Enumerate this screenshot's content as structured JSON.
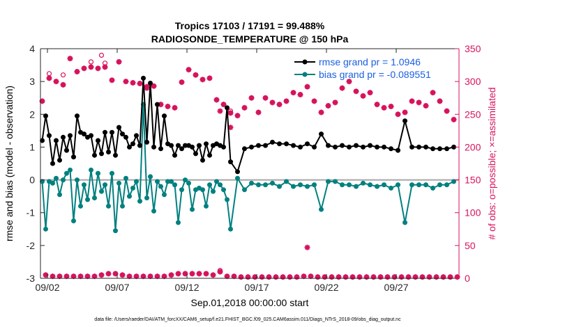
{
  "chart_data": {
    "type": "line",
    "title": "Tropics 17103 / 17191 = 99.488%",
    "subtitle": "RADIOSONDE_TEMPERATURE @ 150 hPa",
    "xlabel": "Sep.01,2018 00:00:00 start",
    "ylabel_left": "rmse and bias (model - observation)",
    "ylabel_right": "# of obs: o=possible; ×=assimilated",
    "footnote": "data file: /Users/raeder/DAI/ATM_forcXX/CAM6_setup/f.e21.FHIST_BGC.f09_025.CAM6assim.011/Diags_NTrS_2018-09/obs_diag_output.nc",
    "xlim": [
      1.5,
      31.5
    ],
    "ylim_left": [
      -3,
      4
    ],
    "ylim_right": [
      0,
      350
    ],
    "x_tick_values": [
      2,
      7,
      12,
      17,
      22,
      27
    ],
    "x_tick_labels": [
      "09/02",
      "09/07",
      "09/12",
      "09/17",
      "09/22",
      "09/27"
    ],
    "y_left_ticks": [
      -3,
      -2,
      -1,
      0,
      1,
      2,
      3,
      4
    ],
    "y_right_ticks": [
      0,
      50,
      100,
      150,
      200,
      250,
      300,
      350
    ],
    "grid": false,
    "legend_position": "top-right",
    "colors": {
      "rmse": "#000000",
      "bias": "#00807f",
      "obs": "#d6135d",
      "zero_line": "#a6a6a6",
      "legend_text": "#1a5fe0"
    },
    "series": [
      {
        "name": "rmse grand pr = 1.0946",
        "axis": "left",
        "x": [
          1.625,
          1.875,
          2.125,
          2.375,
          2.625,
          2.875,
          3.125,
          3.375,
          3.625,
          3.875,
          4.125,
          4.375,
          4.625,
          4.875,
          5.125,
          5.375,
          5.625,
          5.875,
          6.125,
          6.375,
          6.625,
          6.875,
          7.125,
          7.375,
          7.625,
          7.875,
          8.125,
          8.375,
          8.625,
          8.875,
          9.125,
          9.375,
          9.625,
          9.875,
          10.125,
          10.375,
          10.625,
          10.875,
          11.125,
          11.375,
          11.625,
          11.875,
          12.125,
          12.375,
          12.625,
          12.875,
          13.125,
          13.375,
          13.625,
          13.875,
          14.125,
          14.375,
          14.625,
          14.875,
          15.125,
          15.625,
          16.125,
          16.625,
          17.125,
          17.625,
          18.125,
          18.625,
          19.125,
          19.625,
          20.125,
          20.625,
          21.125,
          21.625,
          22.125,
          22.625,
          23.125,
          23.625,
          24.125,
          24.625,
          25.125,
          25.625,
          26.125,
          26.625,
          27.125,
          27.625,
          28.125,
          28.625,
          29.125,
          29.625,
          30.125,
          30.625,
          31.125
        ],
        "values": [
          1.2,
          1.95,
          1.35,
          0.5,
          1.2,
          0.6,
          1.3,
          0.9,
          1.35,
          0.7,
          1.95,
          1.45,
          1.4,
          1.3,
          1.35,
          0.75,
          1.2,
          0.8,
          1.45,
          0.85,
          1.45,
          0.75,
          1.6,
          1.4,
          1.3,
          1.0,
          1.1,
          1.35,
          1.05,
          3.1,
          1.15,
          2.95,
          1.0,
          2.3,
          0.95,
          1.95,
          1.1,
          1.05,
          0.75,
          1.05,
          0.95,
          1.05,
          1.05,
          1.0,
          0.8,
          1.05,
          0.6,
          1.1,
          0.75,
          1.05,
          1.1,
          1.05,
          1.0,
          2.2,
          0.55,
          0.25,
          0.95,
          1.0,
          1.05,
          1.05,
          1.15,
          1.1,
          1.1,
          1.05,
          1.0,
          1.1,
          1.0,
          1.4,
          1.05,
          1.0,
          1.05,
          1.0,
          1.05,
          1.0,
          1.05,
          1.0,
          1.0,
          0.95,
          0.9,
          1.8,
          1.0,
          1.0,
          1.0,
          0.95,
          0.95,
          0.95,
          1.0
        ]
      },
      {
        "name": "bias grand pr = -0.089551",
        "axis": "left",
        "x": [
          1.625,
          1.875,
          2.125,
          2.375,
          2.625,
          2.875,
          3.125,
          3.375,
          3.625,
          3.875,
          4.125,
          4.375,
          4.625,
          4.875,
          5.125,
          5.375,
          5.625,
          5.875,
          6.125,
          6.375,
          6.625,
          6.875,
          7.125,
          7.375,
          7.625,
          7.875,
          8.125,
          8.375,
          8.625,
          8.875,
          9.125,
          9.375,
          9.625,
          9.875,
          10.125,
          10.375,
          10.625,
          10.875,
          11.125,
          11.375,
          11.625,
          11.875,
          12.125,
          12.375,
          12.625,
          12.875,
          13.125,
          13.375,
          13.625,
          13.875,
          14.125,
          14.375,
          14.625,
          14.875,
          15.125,
          15.625,
          16.125,
          16.625,
          17.125,
          17.625,
          18.125,
          18.625,
          19.125,
          19.625,
          20.125,
          20.625,
          21.125,
          21.625,
          22.125,
          22.625,
          23.125,
          23.625,
          24.125,
          24.625,
          25.125,
          25.625,
          26.125,
          26.625,
          27.125,
          27.625,
          28.125,
          28.625,
          29.125,
          29.625,
          30.125,
          30.625,
          31.125
        ],
        "values": [
          -0.05,
          -1.5,
          -0.05,
          -0.1,
          0.05,
          -0.45,
          0.0,
          0.2,
          0.3,
          -1.25,
          0.0,
          -0.8,
          -0.15,
          -0.6,
          0.3,
          -0.55,
          0.2,
          -0.35,
          -0.15,
          -0.8,
          0.2,
          -1.55,
          -0.1,
          -0.8,
          0.05,
          -0.5,
          -0.25,
          -0.05,
          -0.65,
          2.3,
          -0.55,
          0.1,
          -0.95,
          -0.05,
          -0.2,
          -0.45,
          -0.05,
          -0.05,
          -0.15,
          -1.3,
          -0.3,
          0.0,
          -0.1,
          -0.9,
          -0.3,
          -0.25,
          -0.3,
          -0.8,
          -0.15,
          -0.35,
          -0.05,
          -0.15,
          -0.3,
          -0.6,
          -1.5,
          0.05,
          -0.3,
          -0.1,
          -0.15,
          -0.15,
          -0.1,
          -0.2,
          -0.05,
          -0.2,
          -0.15,
          -0.2,
          -0.15,
          -0.9,
          -0.05,
          -0.05,
          -0.15,
          -0.15,
          -0.2,
          -0.1,
          -0.15,
          -0.2,
          -0.15,
          -0.25,
          -0.15,
          -1.3,
          -0.15,
          -0.15,
          -0.15,
          -0.25,
          -0.15,
          -0.15,
          -0.05
        ]
      },
      {
        "name": "possible",
        "axis": "right",
        "marker": "circle",
        "x": [
          1.625,
          2.125,
          2.625,
          3.125,
          3.625,
          4.125,
          4.625,
          5.125,
          5.625,
          6.125,
          6.625,
          7.125,
          7.625,
          8.125,
          8.625,
          9.125,
          9.625,
          10.125,
          10.625,
          11.125,
          11.625,
          12.125,
          12.625,
          13.125,
          13.625,
          14.125,
          14.625,
          15.125,
          15.625,
          16.125,
          16.625,
          17.125,
          17.625,
          18.125,
          18.625,
          19.125,
          19.625,
          20.125,
          20.625,
          21.125,
          21.625,
          22.125,
          22.625,
          23.125,
          23.625,
          24.125,
          24.625,
          25.125,
          25.625,
          26.125,
          26.625,
          27.125,
          27.625,
          28.125,
          28.625,
          29.125,
          29.625,
          30.125,
          30.625,
          31.125,
          1.875,
          2.375,
          2.875,
          3.375,
          3.875,
          4.375,
          4.875,
          5.375,
          5.875,
          6.375,
          6.875,
          7.375,
          7.875,
          8.375,
          8.875,
          9.375,
          9.875,
          10.375,
          10.875,
          11.375,
          11.875,
          12.375,
          12.875,
          13.375,
          13.875,
          14.375,
          14.875,
          15.375,
          15.875,
          16.375,
          16.875,
          17.375,
          17.875,
          18.375,
          18.875,
          19.375,
          19.875,
          20.375,
          20.875,
          21.375,
          21.875,
          22.375,
          22.875,
          23.375,
          23.875,
          24.375,
          24.875,
          25.375,
          25.875,
          26.375,
          26.875,
          27.375,
          27.875,
          28.375,
          28.875,
          29.375,
          29.875,
          30.375,
          30.875,
          31.375
        ],
        "values": [
          270,
          305,
          300,
          295,
          335,
          315,
          320,
          322,
          320,
          322,
          302,
          330,
          300,
          298,
          297,
          292,
          293,
          265,
          262,
          260,
          299,
          318,
          310,
          303,
          305,
          272,
          265,
          252,
          248,
          260,
          275,
          253,
          275,
          268,
          265,
          270,
          283,
          280,
          292,
          270,
          253,
          263,
          268,
          290,
          300,
          285,
          278,
          283,
          265,
          260,
          262,
          250,
          253,
          270,
          268,
          263,
          283,
          270,
          255,
          242,
          5,
          3,
          3,
          3,
          3,
          3,
          3,
          3,
          5,
          7,
          7,
          5,
          3,
          3,
          3,
          3,
          3,
          3,
          5,
          7,
          7,
          7,
          7,
          7,
          5,
          10,
          3,
          3,
          2,
          2,
          2,
          2,
          2,
          2,
          2,
          2,
          2,
          3,
          3,
          2,
          2,
          2,
          2,
          2,
          2,
          2,
          2,
          2,
          2,
          2,
          2,
          2,
          2,
          2,
          2,
          2,
          2,
          2,
          2,
          2
        ],
        "extra_points": [
          [
            2.125,
            312
          ],
          [
            3.125,
            310
          ],
          [
            5.125,
            330
          ],
          [
            5.875,
            340
          ],
          [
            6.125,
            328
          ],
          [
            15.125,
            255
          ],
          [
            14.375,
            12
          ]
        ]
      },
      {
        "name": "assimilated",
        "axis": "right",
        "marker": "x",
        "x": [
          1.625,
          2.125,
          2.625,
          3.125,
          3.625,
          4.125,
          4.625,
          5.125,
          5.625,
          6.125,
          6.625,
          7.125,
          7.625,
          8.125,
          8.625,
          9.125,
          9.625,
          10.125,
          10.625,
          11.125,
          11.625,
          12.125,
          12.625,
          13.125,
          13.625,
          14.125,
          14.625,
          15.125,
          15.625,
          16.125,
          16.625,
          17.125,
          17.625,
          18.125,
          18.625,
          19.125,
          19.625,
          20.125,
          20.625,
          21.125,
          21.625,
          22.125,
          22.625,
          23.125,
          23.625,
          24.125,
          24.625,
          25.125,
          25.625,
          26.125,
          26.625,
          27.125,
          27.625,
          28.125,
          28.625,
          29.125,
          29.625,
          30.125,
          30.625,
          31.125,
          1.875,
          2.375,
          2.875,
          3.375,
          3.875,
          4.375,
          4.875,
          5.375,
          5.875,
          6.375,
          6.875,
          7.375,
          7.875,
          8.375,
          8.875,
          9.375,
          9.875,
          10.375,
          10.875,
          11.375,
          11.875,
          12.375,
          12.875,
          13.375,
          13.875,
          14.375,
          14.875,
          15.375,
          15.875,
          16.375,
          16.875,
          17.375,
          17.875,
          18.375,
          18.875,
          19.375,
          19.875,
          20.375,
          20.875,
          21.375,
          21.875,
          22.375,
          22.875,
          23.375,
          23.875,
          24.375,
          24.875,
          25.375,
          25.875,
          26.375,
          26.875,
          27.375,
          27.875,
          28.375,
          28.875,
          29.375,
          29.875,
          30.375,
          30.875,
          31.375
        ],
        "values": [
          270,
          305,
          300,
          295,
          335,
          315,
          320,
          322,
          320,
          322,
          302,
          330,
          300,
          298,
          297,
          292,
          293,
          265,
          262,
          260,
          299,
          318,
          310,
          303,
          305,
          272,
          265,
          252,
          248,
          260,
          275,
          253,
          275,
          268,
          265,
          270,
          283,
          280,
          292,
          270,
          253,
          263,
          268,
          290,
          300,
          285,
          278,
          283,
          265,
          260,
          262,
          250,
          253,
          270,
          268,
          263,
          283,
          270,
          255,
          242,
          5,
          3,
          3,
          3,
          3,
          3,
          3,
          3,
          5,
          7,
          7,
          5,
          3,
          3,
          3,
          3,
          3,
          3,
          5,
          7,
          7,
          7,
          7,
          7,
          5,
          10,
          3,
          3,
          2,
          2,
          2,
          2,
          2,
          2,
          2,
          2,
          2,
          3,
          3,
          2,
          2,
          2,
          2,
          2,
          2,
          2,
          2,
          2,
          2,
          2,
          2,
          2,
          2,
          2,
          2,
          2,
          2,
          2,
          2,
          2
        ],
        "extra_points": [
          [
            20.625,
            47
          ],
          [
            15.125,
            230
          ],
          [
            14.375,
            255
          ],
          [
            9.125,
            290
          ]
        ]
      }
    ]
  }
}
